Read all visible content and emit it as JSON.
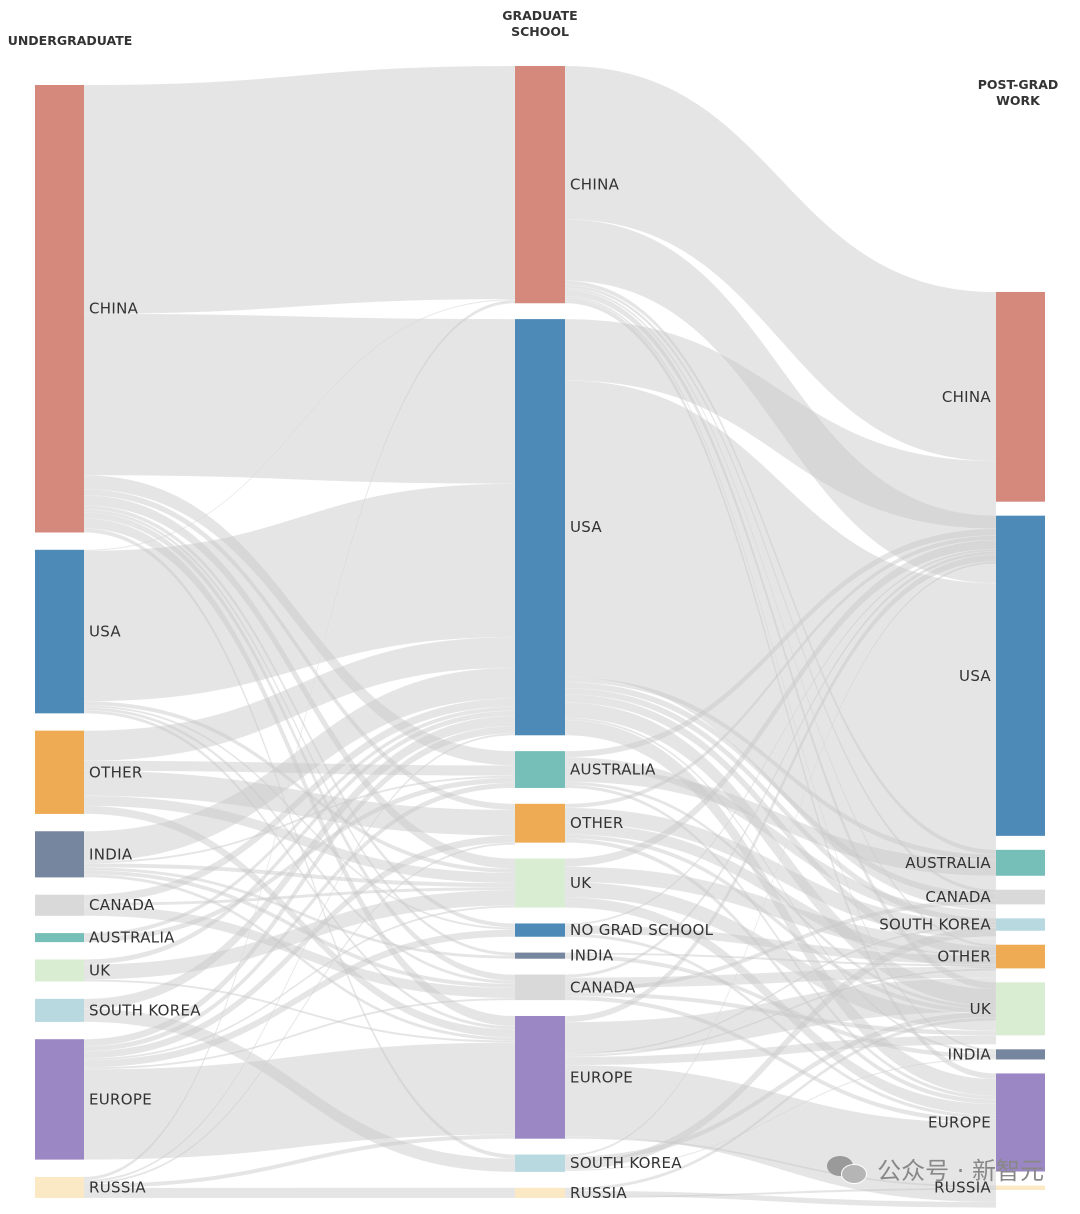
{
  "chart_data": {
    "type": "sankey",
    "stages": [
      "UNDERGRADUATE",
      "GRADUATE SCHOOL",
      "POST-GRAD WORK"
    ],
    "colors": {
      "CHINA": "#d4897c",
      "USA": "#4e8ab7",
      "OTHER": "#eeab54",
      "INDIA": "#77869f",
      "CANADA": "#d9d9d9",
      "AUSTRALIA": "#76bfb8",
      "UK": "#d9edd3",
      "SOUTH KOREA": "#b9d9e0",
      "EUROPE": "#9b87c3",
      "RUSSIA": "#fbe8c5",
      "NO GRAD SCHOOL": "#4e8ab7"
    },
    "nodes": {
      "undergraduate": [
        {
          "name": "CHINA",
          "value": 446
        },
        {
          "name": "USA",
          "value": 163
        },
        {
          "name": "OTHER",
          "value": 83
        },
        {
          "name": "INDIA",
          "value": 46
        },
        {
          "name": "CANADA",
          "value": 21
        },
        {
          "name": "AUSTRALIA",
          "value": 9
        },
        {
          "name": "UK",
          "value": 22
        },
        {
          "name": "SOUTH KOREA",
          "value": 23
        },
        {
          "name": "EUROPE",
          "value": 120
        },
        {
          "name": "RUSSIA",
          "value": 21
        }
      ],
      "graduate": [
        {
          "name": "CHINA",
          "value": 232
        },
        {
          "name": "USA",
          "value": 407
        },
        {
          "name": "AUSTRALIA",
          "value": 36
        },
        {
          "name": "OTHER",
          "value": 38
        },
        {
          "name": "UK",
          "value": 48
        },
        {
          "name": "NO GRAD SCHOOL",
          "value": 13
        },
        {
          "name": "INDIA",
          "value": 6
        },
        {
          "name": "CANADA",
          "value": 25
        },
        {
          "name": "EUROPE",
          "value": 120
        },
        {
          "name": "SOUTH KOREA",
          "value": 17
        },
        {
          "name": "RUSSIA",
          "value": 10
        }
      ],
      "postgrad": [
        {
          "name": "CHINA",
          "value": 186
        },
        {
          "name": "USA",
          "value": 284
        },
        {
          "name": "AUSTRALIA",
          "value": 23
        },
        {
          "name": "CANADA",
          "value": 13
        },
        {
          "name": "SOUTH KOREA",
          "value": 11
        },
        {
          "name": "OTHER",
          "value": 21
        },
        {
          "name": "UK",
          "value": 47
        },
        {
          "name": "INDIA",
          "value": 9
        },
        {
          "name": "EUROPE",
          "value": 87
        },
        {
          "name": "RUSSIA",
          "value": 4
        }
      ]
    },
    "links_undergraduate_to_graduate": [
      {
        "source": "CHINA",
        "target": "CHINA",
        "value": 228
      },
      {
        "source": "CHINA",
        "target": "USA",
        "value": 161
      },
      {
        "source": "CHINA",
        "target": "AUSTRALIA",
        "value": 14
      },
      {
        "source": "CHINA",
        "target": "UK",
        "value": 10
      },
      {
        "source": "CHINA",
        "target": "CANADA",
        "value": 6
      },
      {
        "source": "CHINA",
        "target": "EUROPE",
        "value": 10
      },
      {
        "source": "CHINA",
        "target": "OTHER",
        "value": 6
      },
      {
        "source": "CHINA",
        "target": "SOUTH KOREA",
        "value": 4
      },
      {
        "source": "CHINA",
        "target": "NO GRAD SCHOOL",
        "value": 4
      },
      {
        "source": "CHINA",
        "target": "INDIA",
        "value": 3
      },
      {
        "source": "USA",
        "target": "USA",
        "value": 150
      },
      {
        "source": "USA",
        "target": "UK",
        "value": 4
      },
      {
        "source": "USA",
        "target": "CANADA",
        "value": 3
      },
      {
        "source": "USA",
        "target": "EUROPE",
        "value": 3
      },
      {
        "source": "USA",
        "target": "CHINA",
        "value": 1
      },
      {
        "source": "USA",
        "target": "NO GRAD SCHOOL",
        "value": 2
      },
      {
        "source": "OTHER",
        "target": "USA",
        "value": 30
      },
      {
        "source": "OTHER",
        "target": "OTHER",
        "value": 25
      },
      {
        "source": "OTHER",
        "target": "AUSTRALIA",
        "value": 10
      },
      {
        "source": "OTHER",
        "target": "UK",
        "value": 10
      },
      {
        "source": "OTHER",
        "target": "EUROPE",
        "value": 8
      },
      {
        "source": "INDIA",
        "target": "USA",
        "value": 30
      },
      {
        "source": "INDIA",
        "target": "UK",
        "value": 4
      },
      {
        "source": "INDIA",
        "target": "INDIA",
        "value": 3
      },
      {
        "source": "INDIA",
        "target": "CANADA",
        "value": 4
      },
      {
        "source": "INDIA",
        "target": "EUROPE",
        "value": 3
      },
      {
        "source": "INDIA",
        "target": "AUSTRALIA",
        "value": 2
      },
      {
        "source": "CANADA",
        "target": "USA",
        "value": 8
      },
      {
        "source": "CANADA",
        "target": "CANADA",
        "value": 10
      },
      {
        "source": "CANADA",
        "target": "UK",
        "value": 3
      },
      {
        "source": "AUSTRALIA",
        "target": "AUSTRALIA",
        "value": 5
      },
      {
        "source": "AUSTRALIA",
        "target": "USA",
        "value": 4
      },
      {
        "source": "UK",
        "target": "UK",
        "value": 15
      },
      {
        "source": "UK",
        "target": "USA",
        "value": 5
      },
      {
        "source": "UK",
        "target": "EUROPE",
        "value": 2
      },
      {
        "source": "SOUTH KOREA",
        "target": "SOUTH KOREA",
        "value": 13
      },
      {
        "source": "SOUTH KOREA",
        "target": "USA",
        "value": 10
      },
      {
        "source": "EUROPE",
        "target": "EUROPE",
        "value": 90
      },
      {
        "source": "EUROPE",
        "target": "USA",
        "value": 7
      },
      {
        "source": "EUROPE",
        "target": "UK",
        "value": 2
      },
      {
        "source": "EUROPE",
        "target": "CANADA",
        "value": 2
      },
      {
        "source": "EUROPE",
        "target": "AUSTRALIA",
        "value": 5
      },
      {
        "source": "EUROPE",
        "target": "OTHER",
        "value": 7
      },
      {
        "source": "EUROPE",
        "target": "NO GRAD SCHOOL",
        "value": 7
      },
      {
        "source": "RUSSIA",
        "target": "RUSSIA",
        "value": 10
      },
      {
        "source": "RUSSIA",
        "target": "USA",
        "value": 2
      },
      {
        "source": "RUSSIA",
        "target": "EUROPE",
        "value": 4
      },
      {
        "source": "RUSSIA",
        "target": "CHINA",
        "value": 3
      },
      {
        "source": "RUSSIA",
        "target": "OTHER",
        "value": 2
      }
    ],
    "links_graduate_to_postgrad": [
      {
        "source": "CHINA",
        "target": "CHINA",
        "value": 150
      },
      {
        "source": "CHINA",
        "target": "USA",
        "value": 60
      },
      {
        "source": "CHINA",
        "target": "UK",
        "value": 6
      },
      {
        "source": "CHINA",
        "target": "EUROPE",
        "value": 5
      },
      {
        "source": "CHINA",
        "target": "AUSTRALIA",
        "value": 4
      },
      {
        "source": "CHINA",
        "target": "CANADA",
        "value": 3
      },
      {
        "source": "CHINA",
        "target": "OTHER",
        "value": 2
      },
      {
        "source": "CHINA",
        "target": "INDIA",
        "value": 2
      },
      {
        "source": "USA",
        "target": "USA",
        "value": 290
      },
      {
        "source": "USA",
        "target": "CHINA",
        "value": 60
      },
      {
        "source": "USA",
        "target": "UK",
        "value": 15
      },
      {
        "source": "USA",
        "target": "EUROPE",
        "value": 15
      },
      {
        "source": "USA",
        "target": "CANADA",
        "value": 6
      },
      {
        "source": "USA",
        "target": "SOUTH KOREA",
        "value": 6
      },
      {
        "source": "USA",
        "target": "OTHER",
        "value": 8
      },
      {
        "source": "USA",
        "target": "AUSTRALIA",
        "value": 5
      },
      {
        "source": "USA",
        "target": "INDIA",
        "value": 2
      },
      {
        "source": "AUSTRALIA",
        "target": "AUSTRALIA",
        "value": 14
      },
      {
        "source": "AUSTRALIA",
        "target": "USA",
        "value": 10
      },
      {
        "source": "AUSTRALIA",
        "target": "CHINA",
        "value": 6
      },
      {
        "source": "AUSTRALIA",
        "target": "UK",
        "value": 3
      },
      {
        "source": "AUSTRALIA",
        "target": "EUROPE",
        "value": 3
      },
      {
        "source": "OTHER",
        "target": "OTHER",
        "value": 11
      },
      {
        "source": "OTHER",
        "target": "USA",
        "value": 15
      },
      {
        "source": "OTHER",
        "target": "CHINA",
        "value": 4
      },
      {
        "source": "OTHER",
        "target": "UK",
        "value": 4
      },
      {
        "source": "OTHER",
        "target": "EUROPE",
        "value": 4
      },
      {
        "source": "UK",
        "target": "UK",
        "value": 15
      },
      {
        "source": "UK",
        "target": "USA",
        "value": 15
      },
      {
        "source": "UK",
        "target": "EUROPE",
        "value": 10
      },
      {
        "source": "UK",
        "target": "CHINA",
        "value": 8
      },
      {
        "source": "NO GRAD SCHOOL",
        "target": "USA",
        "value": 8
      },
      {
        "source": "NO GRAD SCHOOL",
        "target": "EUROPE",
        "value": 3
      },
      {
        "source": "NO GRAD SCHOOL",
        "target": "CHINA",
        "value": 2
      },
      {
        "source": "INDIA",
        "target": "INDIA",
        "value": 4
      },
      {
        "source": "INDIA",
        "target": "USA",
        "value": 2
      },
      {
        "source": "CANADA",
        "target": "USA",
        "value": 10
      },
      {
        "source": "CANADA",
        "target": "CANADA",
        "value": 4
      },
      {
        "source": "CANADA",
        "target": "UK",
        "value": 4
      },
      {
        "source": "CANADA",
        "target": "EUROPE",
        "value": 4
      },
      {
        "source": "CANADA",
        "target": "CHINA",
        "value": 3
      },
      {
        "source": "EUROPE",
        "target": "EUROPE",
        "value": 70
      },
      {
        "source": "EUROPE",
        "target": "USA",
        "value": 30
      },
      {
        "source": "EUROPE",
        "target": "CHINA",
        "value": 6
      },
      {
        "source": "EUROPE",
        "target": "UK",
        "value": 8
      },
      {
        "source": "EUROPE",
        "target": "SOUTH KOREA",
        "value": 2
      },
      {
        "source": "EUROPE",
        "target": "RUSSIA",
        "value": 2
      },
      {
        "source": "EUROPE",
        "target": "OTHER",
        "value": 2
      },
      {
        "source": "SOUTH KOREA",
        "target": "SOUTH KOREA",
        "value": 8
      },
      {
        "source": "SOUTH KOREA",
        "target": "USA",
        "value": 5
      },
      {
        "source": "SOUTH KOREA",
        "target": "CHINA",
        "value": 2
      },
      {
        "source": "SOUTH KOREA",
        "target": "INDIA",
        "value": 1
      },
      {
        "source": "RUSSIA",
        "target": "RUSSIA",
        "value": 2
      },
      {
        "source": "RUSSIA",
        "target": "USA",
        "value": 3
      },
      {
        "source": "RUSSIA",
        "target": "EUROPE",
        "value": 5
      }
    ]
  },
  "watermark": {
    "text": "公众号 · 新智元",
    "icon": "wechat-icon"
  }
}
